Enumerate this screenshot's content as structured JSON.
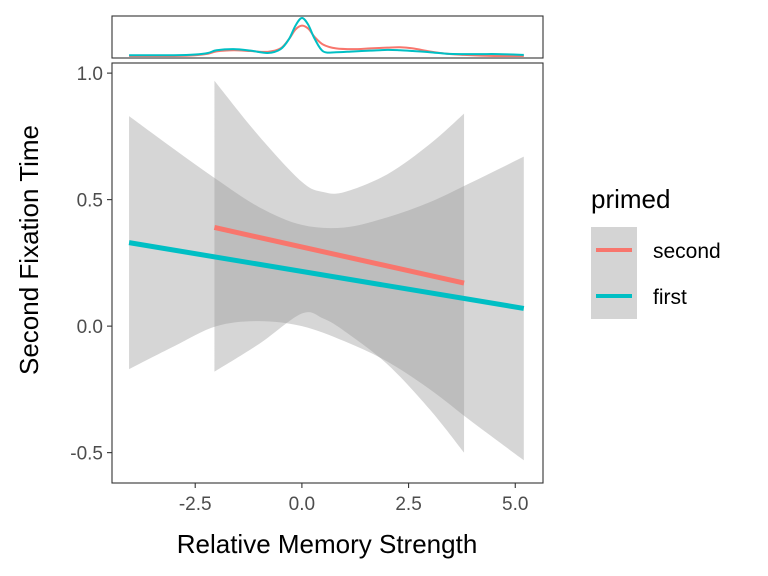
{
  "chart_data": {
    "type": "line",
    "xlabel": "Relative Memory Strength",
    "ylabel": "Second Fixation Time",
    "xlim": [
      -4.45,
      5.65
    ],
    "ylim": [
      -0.62,
      1.04
    ],
    "x_ticks": [
      -2.5,
      0.0,
      2.5,
      5.0
    ],
    "x_tick_labels": [
      "-2.5",
      "0.0",
      "2.5",
      "5.0"
    ],
    "y_ticks": [
      -0.5,
      0.0,
      0.5,
      1.0
    ],
    "y_tick_labels": [
      "-0.5",
      "0.0",
      "0.5",
      "1.0"
    ],
    "grid": false,
    "legend": {
      "title": "primed",
      "placement": "right",
      "entries": [
        "second",
        "first"
      ]
    },
    "series": [
      {
        "name": "second",
        "color": "#F8766D",
        "x": [
          -2.05,
          3.8
        ],
        "y": [
          0.39,
          0.17
        ],
        "ci_x": [
          -2.05,
          -1.0,
          0.0,
          0.5,
          1.0,
          2.0,
          3.0,
          3.8
        ],
        "ci_lower": [
          -0.18,
          -0.07,
          0.05,
          0.03,
          -0.02,
          -0.15,
          -0.33,
          -0.5
        ],
        "ci_upper": [
          0.97,
          0.75,
          0.57,
          0.53,
          0.53,
          0.6,
          0.72,
          0.84
        ]
      },
      {
        "name": "first",
        "color": "#00BFC4",
        "x": [
          -4.05,
          5.2
        ],
        "y": [
          0.33,
          0.07
        ],
        "ci_x": [
          -4.05,
          -3.0,
          -2.0,
          -1.0,
          0.0,
          1.0,
          2.0,
          3.0,
          4.0,
          5.2
        ],
        "ci_lower": [
          -0.17,
          -0.08,
          0.0,
          0.02,
          0.0,
          -0.06,
          -0.14,
          -0.25,
          -0.38,
          -0.53
        ],
        "ci_upper": [
          0.83,
          0.7,
          0.58,
          0.47,
          0.4,
          0.39,
          0.43,
          0.49,
          0.57,
          0.67
        ]
      }
    ],
    "density_x": [
      -4.05,
      -3.5,
      -3.0,
      -2.5,
      -2.2,
      -2.0,
      -1.6,
      -1.2,
      -0.8,
      -0.5,
      -0.3,
      -0.15,
      0.0,
      0.15,
      0.3,
      0.5,
      0.8,
      1.2,
      1.6,
      2.0,
      2.3,
      2.6,
      3.0,
      3.4,
      3.8,
      4.2,
      4.6,
      5.2
    ],
    "density": [
      {
        "name": "second",
        "color": "#F8766D",
        "values": [
          0.0,
          0.0,
          0.0,
          0.02,
          0.06,
          0.12,
          0.15,
          0.13,
          0.11,
          0.2,
          0.45,
          0.7,
          0.8,
          0.72,
          0.5,
          0.3,
          0.2,
          0.18,
          0.2,
          0.22,
          0.23,
          0.2,
          0.12,
          0.06,
          0.03,
          0.01,
          0.0,
          0.0
        ]
      },
      {
        "name": "first",
        "color": "#00BFC4",
        "values": [
          0.02,
          0.02,
          0.02,
          0.04,
          0.08,
          0.15,
          0.18,
          0.14,
          0.08,
          0.18,
          0.45,
          0.8,
          1.0,
          0.82,
          0.45,
          0.12,
          0.1,
          0.12,
          0.14,
          0.16,
          0.15,
          0.13,
          0.1,
          0.06,
          0.05,
          0.05,
          0.05,
          0.03
        ]
      }
    ]
  }
}
